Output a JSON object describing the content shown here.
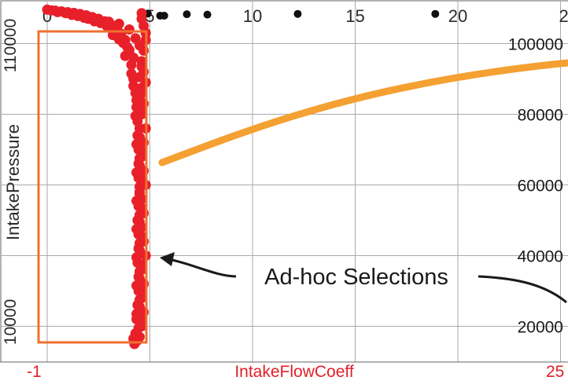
{
  "chart_data": {
    "type": "scatter",
    "xlabel": "IntakeFlowCoeff",
    "ylabel": "IntakePressure",
    "x_ticks": [
      "0",
      "5",
      "10",
      "15",
      "20",
      "2"
    ],
    "y_ticks_right": [
      "100000",
      "80000",
      "60000",
      "40000",
      "20000"
    ],
    "y_ticks_left": [
      "110000",
      "10000"
    ],
    "x_range_labels": [
      "-1",
      "25"
    ],
    "annotation": "Ad-hoc Selections",
    "xlim": [
      -0.2,
      25
    ],
    "ylim": [
      10000,
      110000
    ],
    "grid": true,
    "colors": {
      "selected": "#e8202a",
      "unselected": "#111111",
      "selection_box": "#f07030",
      "curve": "#f4a032",
      "axis_label": "#e0202a"
    },
    "series": [
      {
        "selected": false,
        "points": [
          [
            4.9,
            108500
          ],
          [
            5.5,
            107900
          ],
          [
            5.7,
            107900
          ],
          [
            6.8,
            108300
          ],
          [
            7.8,
            108200
          ],
          [
            12.2,
            108400
          ],
          [
            18.9,
            108400
          ]
        ]
      },
      {
        "selected": true,
        "points": [
          [
            0.0,
            109600
          ],
          [
            0.2,
            109400
          ],
          [
            0.4,
            109300
          ],
          [
            0.7,
            109100
          ],
          [
            1.0,
            108900
          ],
          [
            1.3,
            108700
          ],
          [
            1.6,
            108400
          ],
          [
            1.9,
            108000
          ],
          [
            2.2,
            107500
          ],
          [
            2.5,
            107000
          ],
          [
            2.8,
            106300
          ],
          [
            3.1,
            105400
          ],
          [
            3.4,
            104200
          ],
          [
            3.6,
            102800
          ],
          [
            3.8,
            101000
          ],
          [
            3.9,
            99000
          ],
          [
            4.0,
            97000
          ],
          [
            4.1,
            94000
          ],
          [
            4.2,
            90000
          ],
          [
            4.3,
            86000
          ],
          [
            4.35,
            82000
          ],
          [
            4.4,
            78000
          ],
          [
            4.4,
            74000
          ],
          [
            4.45,
            70000
          ],
          [
            4.45,
            66000
          ],
          [
            4.45,
            62000
          ],
          [
            4.5,
            58000
          ],
          [
            4.45,
            54000
          ],
          [
            4.4,
            50000
          ],
          [
            4.45,
            46000
          ],
          [
            4.45,
            42000
          ],
          [
            4.4,
            38000
          ],
          [
            4.45,
            34000
          ],
          [
            4.45,
            30000
          ],
          [
            4.4,
            26000
          ],
          [
            4.35,
            22000
          ],
          [
            4.3,
            18000
          ],
          [
            4.25,
            15000
          ],
          [
            4.6,
            108600
          ],
          [
            4.6,
            107000
          ],
          [
            4.7,
            105000
          ],
          [
            4.8,
            103000
          ],
          [
            4.8,
            101000
          ],
          [
            4.7,
            98000
          ],
          [
            4.6,
            95000
          ],
          [
            4.7,
            92000
          ],
          [
            4.8,
            89000
          ],
          [
            4.6,
            86000
          ],
          [
            4.7,
            83000
          ],
          [
            4.6,
            80000
          ],
          [
            4.8,
            76000
          ],
          [
            4.7,
            72000
          ],
          [
            4.6,
            68000
          ],
          [
            4.7,
            64000
          ],
          [
            4.8,
            60000
          ],
          [
            4.6,
            56000
          ],
          [
            4.7,
            52000
          ],
          [
            4.6,
            48000
          ],
          [
            4.7,
            44000
          ],
          [
            4.8,
            40000
          ],
          [
            4.6,
            36000
          ],
          [
            4.7,
            32000
          ],
          [
            4.6,
            28000
          ],
          [
            4.7,
            24000
          ],
          [
            4.6,
            20000
          ],
          [
            4.5,
            17000
          ],
          [
            1.5,
            107800
          ],
          [
            2.0,
            107000
          ],
          [
            2.6,
            105800
          ],
          [
            3.0,
            104500
          ],
          [
            3.3,
            103000
          ],
          [
            3.5,
            101200
          ],
          [
            2.3,
            106300
          ],
          [
            2.9,
            105000
          ],
          [
            3.2,
            102400
          ],
          [
            3.7,
            100200
          ],
          [
            4.0,
            98200
          ],
          [
            3.8,
            96500
          ],
          [
            4.1,
            91500
          ],
          [
            4.2,
            88000
          ],
          [
            4.35,
            84000
          ],
          [
            4.3,
            79500
          ],
          [
            4.5,
            76000
          ],
          [
            4.35,
            71500
          ],
          [
            4.5,
            67500
          ],
          [
            4.35,
            63500
          ],
          [
            4.5,
            59500
          ],
          [
            4.35,
            55500
          ],
          [
            4.5,
            51500
          ],
          [
            4.35,
            47500
          ],
          [
            4.5,
            43500
          ],
          [
            4.35,
            39500
          ],
          [
            4.5,
            35500
          ],
          [
            4.35,
            31500
          ],
          [
            4.5,
            27500
          ],
          [
            4.35,
            23500
          ],
          [
            4.45,
            19500
          ],
          [
            4.2,
            16500
          ],
          [
            0.5,
            108900
          ],
          [
            0.9,
            108600
          ],
          [
            1.2,
            108100
          ],
          [
            1.8,
            107300
          ],
          [
            3.0,
            106200
          ],
          [
            3.5,
            105600
          ],
          [
            4.0,
            104000
          ],
          [
            4.3,
            101500
          ],
          [
            4.5,
            99500
          ],
          [
            4.2,
            96000
          ],
          [
            4.6,
            93500
          ],
          [
            4.5,
            90500
          ],
          [
            4.6,
            87500
          ],
          [
            4.5,
            84500
          ],
          [
            4.6,
            81500
          ],
          [
            4.5,
            73500
          ],
          [
            4.6,
            69500
          ],
          [
            4.5,
            65500
          ],
          [
            4.6,
            61500
          ],
          [
            4.5,
            57500
          ],
          [
            4.6,
            53500
          ],
          [
            4.5,
            49500
          ],
          [
            4.6,
            45500
          ],
          [
            4.5,
            41500
          ],
          [
            4.6,
            37500
          ],
          [
            4.5,
            33500
          ],
          [
            4.6,
            29500
          ],
          [
            4.5,
            25500
          ],
          [
            4.6,
            21500
          ],
          [
            4.4,
            16000
          ]
        ]
      }
    ]
  }
}
